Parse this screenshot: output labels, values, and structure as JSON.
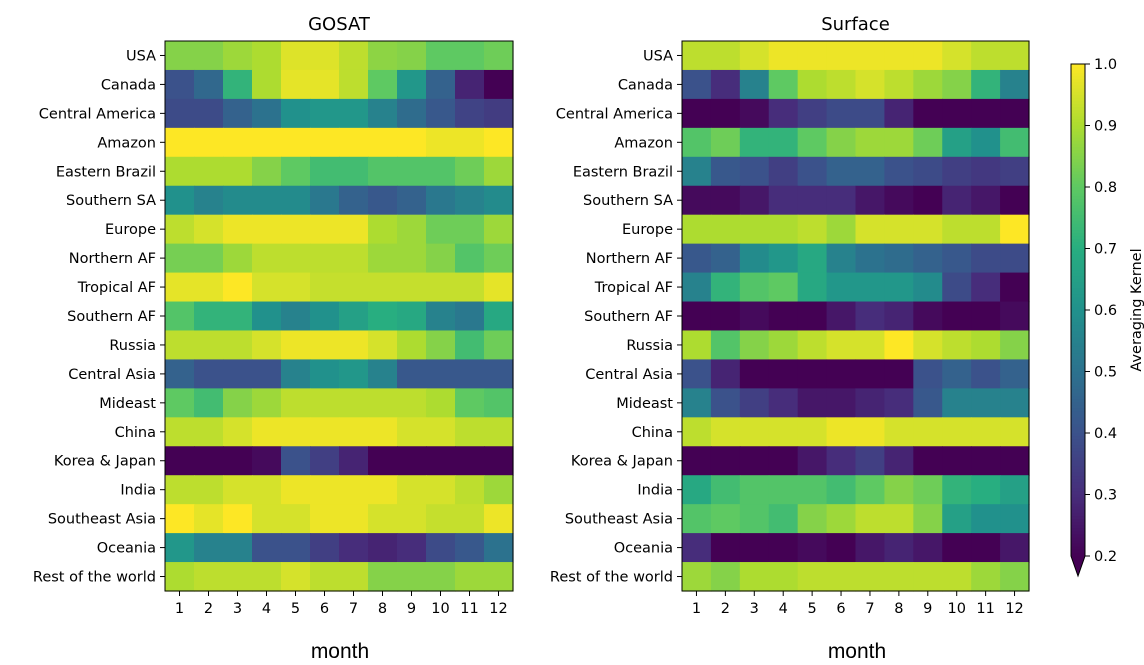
{
  "chart_data": [
    {
      "type": "heatmap",
      "title": "GOSAT",
      "xlabel": "month",
      "ylabel": "",
      "x": [
        "1",
        "2",
        "3",
        "4",
        "5",
        "6",
        "7",
        "8",
        "9",
        "10",
        "11",
        "12"
      ],
      "y": [
        "USA",
        "Canada",
        "Central America",
        "Amazon",
        "Eastern Brazil",
        "Southern SA",
        "Europe",
        "Northern AF",
        "Tropical AF",
        "Southern AF",
        "Russia",
        "Central Asia",
        "Mideast",
        "China",
        "Korea & Japan",
        "India",
        "Southeast Asia",
        "Oceania",
        "Rest of the world"
      ],
      "values": [
        [
          0.85,
          0.85,
          0.88,
          0.9,
          0.96,
          0.96,
          0.92,
          0.86,
          0.85,
          0.8,
          0.8,
          0.82
        ],
        [
          0.4,
          0.47,
          0.72,
          0.9,
          0.97,
          0.97,
          0.92,
          0.8,
          0.62,
          0.45,
          0.28,
          0.2
        ],
        [
          0.38,
          0.38,
          0.45,
          0.5,
          0.6,
          0.62,
          0.62,
          0.55,
          0.48,
          0.42,
          0.36,
          0.34
        ],
        [
          1.0,
          1.0,
          1.0,
          1.0,
          1.0,
          1.0,
          1.0,
          1.0,
          1.0,
          0.98,
          0.98,
          1.0
        ],
        [
          0.9,
          0.9,
          0.9,
          0.85,
          0.8,
          0.75,
          0.75,
          0.78,
          0.78,
          0.78,
          0.82,
          0.88
        ],
        [
          0.6,
          0.55,
          0.58,
          0.58,
          0.58,
          0.52,
          0.45,
          0.42,
          0.45,
          0.52,
          0.55,
          0.58
        ],
        [
          0.92,
          0.95,
          0.98,
          0.98,
          0.98,
          0.98,
          0.98,
          0.9,
          0.88,
          0.82,
          0.82,
          0.88
        ],
        [
          0.83,
          0.83,
          0.88,
          0.92,
          0.92,
          0.92,
          0.92,
          0.88,
          0.88,
          0.85,
          0.78,
          0.82
        ],
        [
          0.97,
          0.97,
          1.0,
          0.95,
          0.95,
          0.93,
          0.93,
          0.93,
          0.93,
          0.93,
          0.93,
          0.97
        ],
        [
          0.78,
          0.72,
          0.72,
          0.6,
          0.55,
          0.6,
          0.65,
          0.7,
          0.68,
          0.55,
          0.52,
          0.68
        ],
        [
          0.92,
          0.92,
          0.92,
          0.95,
          0.98,
          0.98,
          0.98,
          0.95,
          0.9,
          0.85,
          0.75,
          0.82
        ],
        [
          0.45,
          0.4,
          0.4,
          0.4,
          0.55,
          0.6,
          0.62,
          0.55,
          0.42,
          0.42,
          0.42,
          0.42
        ],
        [
          0.8,
          0.75,
          0.85,
          0.88,
          0.92,
          0.92,
          0.92,
          0.92,
          0.92,
          0.9,
          0.8,
          0.78
        ],
        [
          0.92,
          0.92,
          0.95,
          0.98,
          0.98,
          0.98,
          0.98,
          0.98,
          0.95,
          0.95,
          0.92,
          0.92
        ],
        [
          0.2,
          0.2,
          0.2,
          0.22,
          0.4,
          0.35,
          0.28,
          0.2,
          0.2,
          0.2,
          0.2,
          0.2
        ],
        [
          0.92,
          0.92,
          0.95,
          0.95,
          0.98,
          0.98,
          0.98,
          0.98,
          0.95,
          0.95,
          0.92,
          0.88
        ],
        [
          1.0,
          0.97,
          1.0,
          0.95,
          0.95,
          0.98,
          0.98,
          0.95,
          0.95,
          0.93,
          0.93,
          0.98
        ],
        [
          0.62,
          0.55,
          0.55,
          0.4,
          0.4,
          0.35,
          0.3,
          0.28,
          0.3,
          0.38,
          0.42,
          0.5
        ],
        [
          0.9,
          0.92,
          0.92,
          0.92,
          0.95,
          0.92,
          0.92,
          0.85,
          0.85,
          0.85,
          0.88,
          0.88
        ]
      ],
      "grid": false
    },
    {
      "type": "heatmap",
      "title": "Surface",
      "xlabel": "month",
      "ylabel": "",
      "x": [
        "1",
        "2",
        "3",
        "4",
        "5",
        "6",
        "7",
        "8",
        "9",
        "10",
        "11",
        "12"
      ],
      "y": [
        "USA",
        "Canada",
        "Central America",
        "Amazon",
        "Eastern Brazil",
        "Southern SA",
        "Europe",
        "Northern AF",
        "Tropical AF",
        "Southern AF",
        "Russia",
        "Central Asia",
        "Mideast",
        "China",
        "Korea & Japan",
        "India",
        "Southeast Asia",
        "Oceania",
        "Rest of the world"
      ],
      "values": [
        [
          0.92,
          0.92,
          0.95,
          0.98,
          0.98,
          0.98,
          0.98,
          0.98,
          0.98,
          0.95,
          0.92,
          0.92
        ],
        [
          0.4,
          0.3,
          0.55,
          0.8,
          0.9,
          0.92,
          0.95,
          0.92,
          0.88,
          0.85,
          0.72,
          0.55
        ],
        [
          0.2,
          0.2,
          0.22,
          0.3,
          0.35,
          0.38,
          0.38,
          0.28,
          0.2,
          0.2,
          0.2,
          0.2
        ],
        [
          0.78,
          0.82,
          0.72,
          0.72,
          0.8,
          0.85,
          0.88,
          0.88,
          0.82,
          0.65,
          0.6,
          0.75
        ],
        [
          0.55,
          0.42,
          0.4,
          0.35,
          0.4,
          0.45,
          0.45,
          0.4,
          0.38,
          0.35,
          0.33,
          0.35
        ],
        [
          0.22,
          0.22,
          0.25,
          0.3,
          0.3,
          0.3,
          0.25,
          0.22,
          0.2,
          0.28,
          0.25,
          0.2
        ],
        [
          0.9,
          0.9,
          0.9,
          0.9,
          0.92,
          0.88,
          0.95,
          0.95,
          0.95,
          0.92,
          0.92,
          1.0
        ],
        [
          0.42,
          0.45,
          0.58,
          0.62,
          0.68,
          0.55,
          0.5,
          0.48,
          0.45,
          0.42,
          0.38,
          0.38
        ],
        [
          0.55,
          0.72,
          0.78,
          0.8,
          0.68,
          0.62,
          0.62,
          0.62,
          0.58,
          0.38,
          0.3,
          0.2
        ],
        [
          0.2,
          0.2,
          0.22,
          0.2,
          0.2,
          0.25,
          0.3,
          0.28,
          0.22,
          0.2,
          0.2,
          0.22
        ],
        [
          0.9,
          0.78,
          0.85,
          0.88,
          0.92,
          0.95,
          0.95,
          1.0,
          0.95,
          0.92,
          0.9,
          0.85
        ],
        [
          0.4,
          0.28,
          0.2,
          0.2,
          0.2,
          0.2,
          0.2,
          0.2,
          0.4,
          0.45,
          0.4,
          0.45
        ],
        [
          0.55,
          0.4,
          0.35,
          0.3,
          0.25,
          0.25,
          0.28,
          0.3,
          0.42,
          0.55,
          0.55,
          0.55
        ],
        [
          0.92,
          0.95,
          0.95,
          0.95,
          0.95,
          0.98,
          0.98,
          0.95,
          0.95,
          0.95,
          0.95,
          0.95
        ],
        [
          0.2,
          0.2,
          0.2,
          0.2,
          0.25,
          0.3,
          0.35,
          0.28,
          0.2,
          0.2,
          0.2,
          0.2
        ],
        [
          0.68,
          0.75,
          0.78,
          0.78,
          0.78,
          0.75,
          0.8,
          0.85,
          0.82,
          0.72,
          0.7,
          0.65
        ],
        [
          0.78,
          0.8,
          0.78,
          0.75,
          0.85,
          0.88,
          0.92,
          0.92,
          0.85,
          0.65,
          0.6,
          0.6
        ],
        [
          0.3,
          0.2,
          0.2,
          0.2,
          0.22,
          0.2,
          0.25,
          0.28,
          0.25,
          0.2,
          0.2,
          0.25
        ],
        [
          0.88,
          0.85,
          0.9,
          0.9,
          0.92,
          0.92,
          0.92,
          0.92,
          0.92,
          0.92,
          0.88,
          0.85
        ]
      ],
      "grid": false
    }
  ],
  "colorbar": {
    "label": "Averaging Kernel",
    "ticks": [
      "0.2",
      "0.3",
      "0.4",
      "0.5",
      "0.6",
      "0.7",
      "0.8",
      "0.9",
      "1.0"
    ],
    "range": [
      0.2,
      1.0
    ],
    "extend": "min",
    "colormap": "viridis"
  }
}
